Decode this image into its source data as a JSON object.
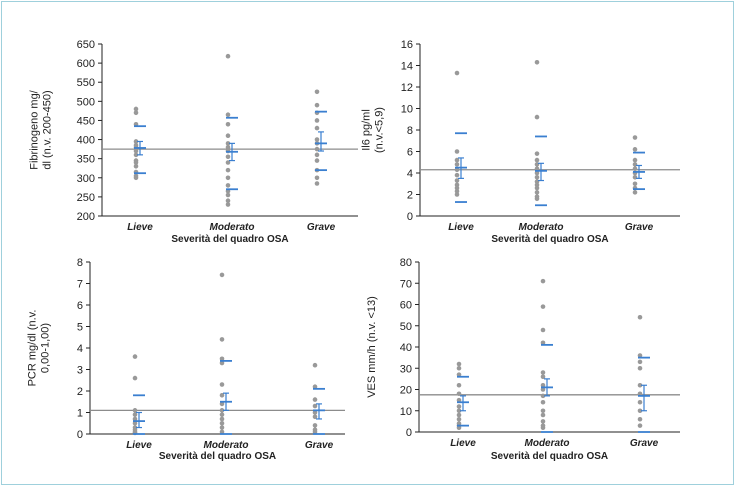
{
  "colors": {
    "point": "#999999",
    "bar": "#3a7fd0",
    "refline": "#8c8c8c",
    "axis": "#222222",
    "frame": "#9fd0dc"
  },
  "chart_data": [
    {
      "type": "scatter",
      "ylabel_lines": [
        "Fibrinogeno mg/",
        "dl (n.v. 200-450)"
      ],
      "xlabel": "Severità del quadro OSA",
      "categories": [
        "Lieve",
        "Moderato",
        "Grave"
      ],
      "ylim": [
        200,
        650
      ],
      "yticks": [
        200,
        250,
        300,
        350,
        400,
        450,
        500,
        550,
        600,
        650
      ],
      "reference_line": 375,
      "points": [
        [
          480,
          470,
          440,
          395,
          385,
          380,
          370,
          360,
          345,
          340,
          330,
          315,
          305,
          300
        ],
        [
          618,
          465,
          440,
          410,
          390,
          380,
          370,
          355,
          340,
          320,
          300,
          280,
          265,
          255,
          240,
          230
        ],
        [
          525,
          490,
          470,
          450,
          430,
          400,
          390,
          375,
          360,
          345,
          320,
          300,
          285
        ]
      ],
      "upper": [
        435,
        457,
        473
      ],
      "mean": [
        378,
        368,
        390
      ],
      "mean_ci": [
        [
          360,
          395
        ],
        [
          345,
          390
        ],
        [
          370,
          420
        ]
      ],
      "lower": [
        312,
        270,
        320
      ]
    },
    {
      "type": "scatter",
      "ylabel_lines": [
        "Il6 pg/ml",
        "(n.v.<5,9)"
      ],
      "xlabel": "Severità del quadro OSA",
      "categories": [
        "Lieve",
        "Moderato",
        "Grave"
      ],
      "ylim": [
        0,
        16
      ],
      "yticks": [
        0,
        2,
        4,
        6,
        8,
        10,
        12,
        14,
        16
      ],
      "reference_line": 4.3,
      "points": [
        [
          13.3,
          6.0,
          5.2,
          4.8,
          4.3,
          3.8,
          3.3,
          2.9,
          2.6,
          2.3,
          2.0
        ],
        [
          14.3,
          9.2,
          5.8,
          5.2,
          4.8,
          4.4,
          4.0,
          3.6,
          3.2,
          2.9,
          2.6,
          2.2,
          1.8,
          1.6
        ],
        [
          7.3,
          6.2,
          5.2,
          4.8,
          4.4,
          4.0,
          3.6,
          3.0,
          2.6,
          2.2
        ]
      ],
      "upper": [
        7.7,
        7.4,
        5.9
      ],
      "mean": [
        4.5,
        4.2,
        4.1
      ],
      "mean_ci": [
        [
          3.5,
          5.4
        ],
        [
          3.3,
          4.9
        ],
        [
          3.5,
          4.7
        ]
      ],
      "lower": [
        1.3,
        1.0,
        2.5
      ]
    },
    {
      "type": "scatter",
      "ylabel_lines": [
        "PCR mg/dl (n.v.",
        "0,00-1,00)"
      ],
      "xlabel": "Severità del quadro OSA",
      "categories": [
        "Lieve",
        "Moderato",
        "Grave"
      ],
      "ylim": [
        0,
        8
      ],
      "yticks": [
        0,
        1,
        2,
        3,
        4,
        5,
        6,
        7,
        8
      ],
      "reference_line": 1.1,
      "points": [
        [
          3.6,
          2.6,
          1.1,
          0.9,
          0.7,
          0.5,
          0.3,
          0.2,
          0.1,
          0.05
        ],
        [
          7.4,
          4.4,
          3.5,
          3.3,
          2.3,
          1.8,
          1.4,
          1.1,
          0.9,
          0.7,
          0.5,
          0.3,
          0.1
        ],
        [
          3.2,
          2.2,
          1.6,
          1.3,
          1.0,
          0.8,
          0.4,
          0.2,
          0.1
        ]
      ],
      "upper": [
        1.8,
        3.4,
        2.1
      ],
      "mean": [
        0.6,
        1.5,
        1.1
      ],
      "mean_ci": [
        [
          0.3,
          1.0
        ],
        [
          1.1,
          1.9
        ],
        [
          0.7,
          1.4
        ]
      ],
      "lower": [
        0.0,
        0.0,
        0.0
      ]
    },
    {
      "type": "scatter",
      "ylabel_lines": [
        "VES mm/h (n.v. <13)"
      ],
      "xlabel": "Severità del quadro OSA",
      "categories": [
        "Lieve",
        "Moderato",
        "Grave"
      ],
      "ylim": [
        0,
        80
      ],
      "yticks": [
        0,
        10,
        20,
        30,
        40,
        50,
        60,
        70,
        80
      ],
      "reference_line": 17.5,
      "points": [
        [
          32,
          30,
          27,
          22,
          18,
          15,
          12,
          10,
          8,
          6,
          4,
          3,
          2
        ],
        [
          71,
          59,
          48,
          42,
          28,
          26,
          22,
          20,
          17,
          14,
          10,
          8,
          5,
          3,
          2
        ],
        [
          54,
          36,
          33,
          30,
          22,
          18,
          14,
          10,
          6,
          3
        ]
      ],
      "upper": [
        26,
        41,
        35
      ],
      "mean": [
        14,
        21,
        17
      ],
      "mean_ci": [
        [
          10,
          17
        ],
        [
          17,
          25
        ],
        [
          10,
          22
        ]
      ],
      "lower": [
        3,
        0,
        0
      ]
    }
  ]
}
